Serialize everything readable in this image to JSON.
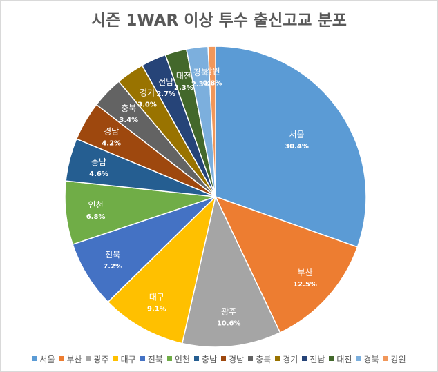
{
  "chart_data": {
    "type": "pie",
    "title": "시즌 1WAR 이상 투수 출신고교 분포",
    "legend_position": "bottom",
    "start_angle_deg": 0,
    "direction": "clockwise",
    "series": [
      {
        "name": "서울",
        "value": 30.4,
        "label": "30.4%",
        "color": "#5B9BD5",
        "label_color": "#ffffff"
      },
      {
        "name": "부산",
        "value": 12.5,
        "label": "12.5%",
        "color": "#ED7D31",
        "label_color": "#ffffff"
      },
      {
        "name": "광주",
        "value": 10.6,
        "label": "10.6%",
        "color": "#A5A5A5",
        "label_color": "#ffffff"
      },
      {
        "name": "대구",
        "value": 9.1,
        "label": "9.1%",
        "color": "#FFC000",
        "label_color": "#ffffff"
      },
      {
        "name": "전북",
        "value": 7.2,
        "label": "7.2%",
        "color": "#4472C4",
        "label_color": "#ffffff"
      },
      {
        "name": "인천",
        "value": 6.8,
        "label": "6.8%",
        "color": "#70AD47",
        "label_color": "#ffffff"
      },
      {
        "name": "충남",
        "value": 4.6,
        "label": "4.6%",
        "color": "#255E91",
        "label_color": "#ffffff"
      },
      {
        "name": "경남",
        "value": 4.2,
        "label": "4.2%",
        "color": "#9E480E",
        "label_color": "#ffffff"
      },
      {
        "name": "충북",
        "value": 3.4,
        "label": "3.4%",
        "color": "#636363",
        "label_color": "#ffffff"
      },
      {
        "name": "경기",
        "value": 3.0,
        "label": "3.0%",
        "color": "#997300",
        "label_color": "#ffffff"
      },
      {
        "name": "전남",
        "value": 2.7,
        "label": "2.7%",
        "color": "#264478",
        "label_color": "#ffffff"
      },
      {
        "name": "대전",
        "value": 2.3,
        "label": "2.3%",
        "color": "#43682B",
        "label_color": "#ffffff"
      },
      {
        "name": "경북",
        "value": 2.3,
        "label": "2.3%",
        "color": "#7CAFDD",
        "label_color": "#ffffff"
      },
      {
        "name": "강원",
        "value": 0.8,
        "label": "0.8%",
        "color": "#F1975A",
        "label_color": "#ffffff"
      }
    ]
  }
}
